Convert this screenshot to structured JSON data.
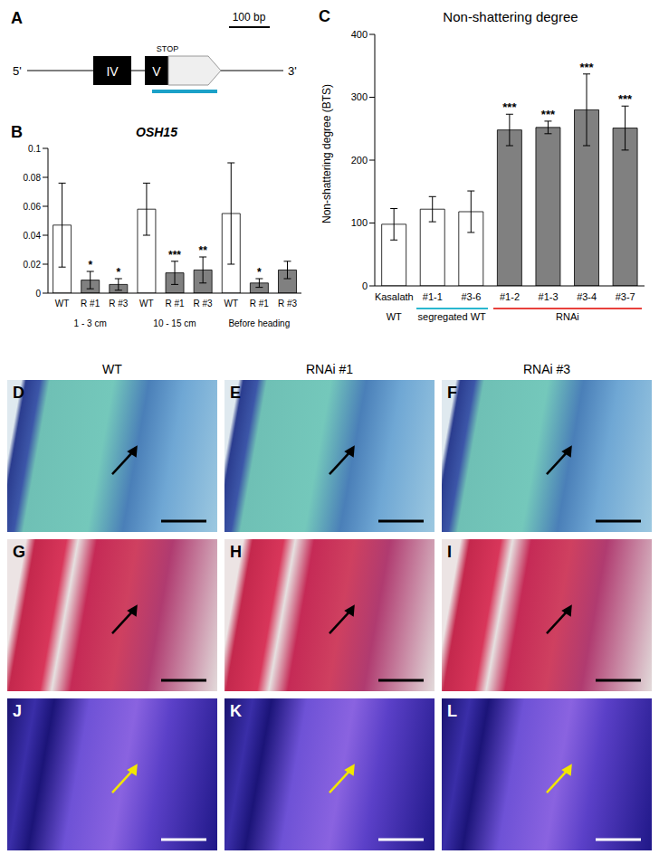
{
  "chart_data": [
    {
      "type": "bar",
      "panel": "B",
      "title": "OSH15",
      "categories": [
        "WT",
        "R #1",
        "R #3",
        "WT",
        "R #1",
        "R #3",
        "WT",
        "R #1",
        "R #3"
      ],
      "values": [
        0.047,
        0.009,
        0.006,
        0.058,
        0.014,
        0.016,
        0.055,
        0.007,
        0.016
      ],
      "errors": [
        0.029,
        0.006,
        0.004,
        0.018,
        0.008,
        0.009,
        0.035,
        0.003,
        0.006
      ],
      "significance": [
        "",
        "*",
        "*",
        "",
        "***",
        "**",
        "",
        "*",
        ""
      ],
      "colors": [
        "#ffffff",
        "#808080",
        "#808080",
        "#ffffff",
        "#808080",
        "#808080",
        "#ffffff",
        "#808080",
        "#808080"
      ],
      "groups": [
        {
          "label": "1 - 3 cm",
          "from": 0,
          "to": 2
        },
        {
          "label": "10 - 15 cm",
          "from": 3,
          "to": 5
        },
        {
          "label": "Before heading",
          "from": 6,
          "to": 8
        }
      ],
      "ylim": [
        0,
        0.1
      ],
      "yticks": [
        0,
        0.02,
        0.04,
        0.06,
        0.08,
        0.1
      ],
      "grid": false
    },
    {
      "type": "bar",
      "panel": "C",
      "title": "Non-shattering degree",
      "y_label": "Non-shattering degree (BTS)",
      "categories": [
        "Kasalath",
        "#1-1",
        "#3-6",
        "#1-2",
        "#1-3",
        "#3-4",
        "#3-7"
      ],
      "values": [
        98,
        122,
        118,
        248,
        252,
        280,
        251
      ],
      "errors": [
        25,
        20,
        33,
        25,
        10,
        57,
        35
      ],
      "significance": [
        "",
        "",
        "",
        "***",
        "***",
        "***",
        "***"
      ],
      "colors": [
        "#ffffff",
        "#ffffff",
        "#ffffff",
        "#808080",
        "#808080",
        "#808080",
        "#808080"
      ],
      "groups": [
        {
          "label": "WT",
          "from": 0,
          "to": 0
        },
        {
          "label": "segregated WT",
          "from": 1,
          "to": 2,
          "color": "#2ab7cf"
        },
        {
          "label": "RNAi",
          "from": 3,
          "to": 6,
          "color": "#e8413c"
        }
      ],
      "ylim": [
        0,
        400
      ],
      "yticks": [
        0,
        100,
        200,
        300,
        400
      ],
      "grid": false
    }
  ],
  "gene_diagram": {
    "panel": "A",
    "exons": [
      "IV",
      "V"
    ],
    "stop_label": "STOP",
    "scale_label": "100 bp",
    "five_prime": "5'",
    "three_prime": "3'",
    "probe_color": "#1ba1c8"
  },
  "image_panels": {
    "columns": [
      "WT",
      "RNAi #1",
      "RNAi #3"
    ],
    "rows": [
      [
        "D",
        "E",
        "F"
      ],
      [
        "G",
        "H",
        "I"
      ],
      [
        "J",
        "K",
        "L"
      ]
    ]
  }
}
